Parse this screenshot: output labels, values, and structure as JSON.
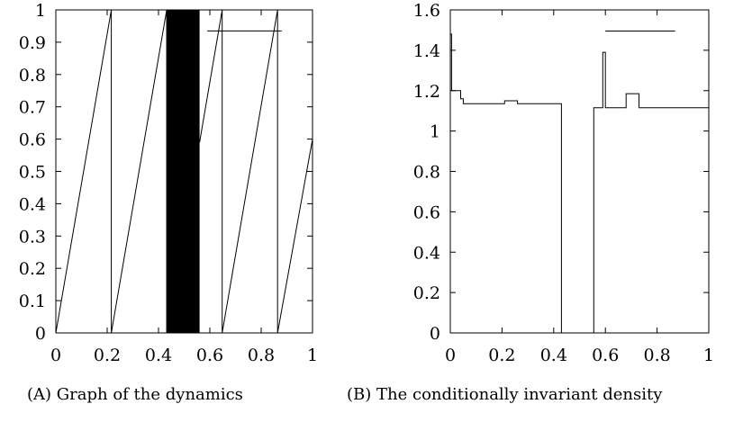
{
  "chart_data": [
    {
      "id": "a",
      "type": "line",
      "caption_tag": "(A)",
      "caption_text": "Graph of the dynamics",
      "xlim": [
        0,
        1
      ],
      "ylim": [
        0,
        1
      ],
      "xticks": [
        "0",
        "0.2",
        "0.4",
        "0.6",
        "0.8",
        "1"
      ],
      "xtick_values": [
        0,
        0.2,
        0.4,
        0.6,
        0.8,
        1
      ],
      "yticks": [
        "0",
        "0.1",
        "0.2",
        "0.3",
        "0.4",
        "0.5",
        "0.6",
        "0.7",
        "0.8",
        "0.9",
        "1"
      ],
      "ytick_values": [
        0,
        0.1,
        0.2,
        0.3,
        0.4,
        0.5,
        0.6,
        0.7,
        0.8,
        0.9,
        1
      ],
      "hole": [
        0.43,
        0.56
      ],
      "series": [
        {
          "x": [
            0,
            0.216,
            0.216,
            0.432
          ],
          "y": [
            0,
            1,
            0,
            1
          ]
        },
        {
          "x": [
            0.56,
            0.648,
            0.648,
            0.864,
            0.864,
            1.0
          ],
          "y": [
            0.59,
            1,
            0,
            1,
            0,
            0.6
          ]
        }
      ],
      "legend_line_y": 0.935,
      "legend_line_x": [
        0.59,
        0.88
      ]
    },
    {
      "id": "b",
      "type": "line",
      "caption_tag": "(B)",
      "caption_text": "The conditionally invariant density",
      "xlim": [
        0,
        1
      ],
      "ylim": [
        0,
        1.6
      ],
      "xticks": [
        "0",
        "0.2",
        "0.4",
        "0.6",
        "0.8",
        "1"
      ],
      "xtick_values": [
        0,
        0.2,
        0.4,
        0.6,
        0.8,
        1
      ],
      "yticks": [
        "0",
        "0.2",
        "0.4",
        "0.6",
        "0.8",
        "1",
        "1.2",
        "1.4",
        "1.6"
      ],
      "ytick_values": [
        0,
        0.2,
        0.4,
        0.6,
        0.8,
        1,
        1.2,
        1.4,
        1.6
      ],
      "series": [
        {
          "x": [
            0,
            0.005,
            0.005,
            0.01,
            0.01,
            0.04,
            0.04,
            0.05,
            0.05,
            0.21,
            0.21,
            0.26,
            0.26,
            0.43,
            0.43,
            0.555,
            0.555,
            0.575,
            0.575,
            0.59,
            0.59,
            0.6,
            0.6,
            0.68,
            0.68,
            0.73,
            0.73,
            1.0
          ],
          "y": [
            1.48,
            1.48,
            1.2,
            1.2,
            1.2,
            1.2,
            1.16,
            1.16,
            1.135,
            1.135,
            1.15,
            1.15,
            1.135,
            1.135,
            0,
            0,
            1.115,
            1.115,
            1.115,
            1.115,
            1.39,
            1.39,
            1.115,
            1.115,
            1.185,
            1.185,
            1.115,
            1.115
          ]
        }
      ],
      "legend_line_y": 1.495,
      "legend_line_x": [
        0.6,
        0.87
      ]
    }
  ]
}
